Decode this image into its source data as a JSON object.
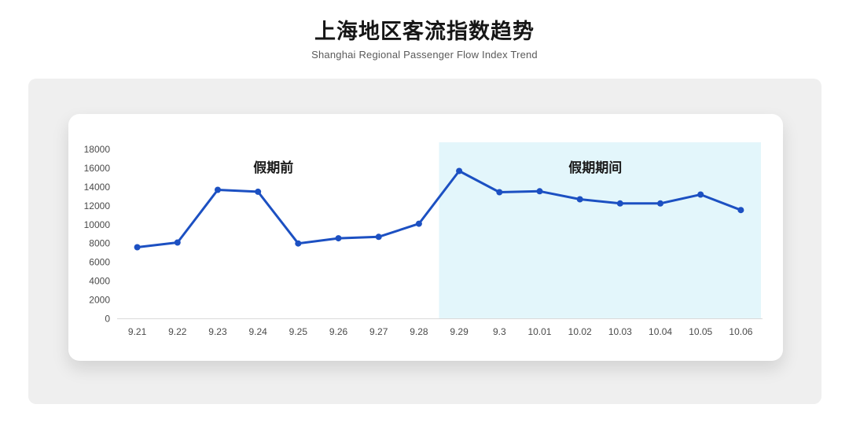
{
  "page": {
    "title": "上海地区客流指数趋势",
    "subtitle": "Shanghai Regional Passenger Flow Index Trend"
  },
  "chart_data": {
    "type": "line",
    "title": "上海地区客流指数趋势",
    "subtitle": "Shanghai Regional Passenger Flow Index Trend",
    "categories": [
      "9.21",
      "9.22",
      "9.23",
      "9.24",
      "9.25",
      "9.26",
      "9.27",
      "9.28",
      "9.29",
      "9.3",
      "10.01",
      "10.02",
      "10.03",
      "10.04",
      "10.05",
      "10.06"
    ],
    "values": [
      7600,
      8100,
      13700,
      13500,
      8000,
      8550,
      8700,
      10100,
      15700,
      13450,
      13550,
      12700,
      12250,
      12250,
      13200,
      11550
    ],
    "xlabel": "",
    "ylabel": "",
    "ylim": [
      0,
      18000
    ],
    "yticks": [
      0,
      2000,
      4000,
      6000,
      8000,
      10000,
      12000,
      14000,
      16000,
      18000
    ],
    "grid": false,
    "legend": false,
    "line_color": "#1c50c2",
    "marker_color": "#1c50c2",
    "axis_line_color": "#d9d9d9",
    "axis_label_color": "#4a4a4a",
    "annotations": [
      {
        "label": "假期前",
        "region": "before"
      },
      {
        "label": "假期期间",
        "region": "highlight"
      }
    ],
    "highlight_region": {
      "from": "9.29",
      "to": "10.06",
      "color": "#e3f6fb",
      "meaning": "假期期间"
    }
  }
}
